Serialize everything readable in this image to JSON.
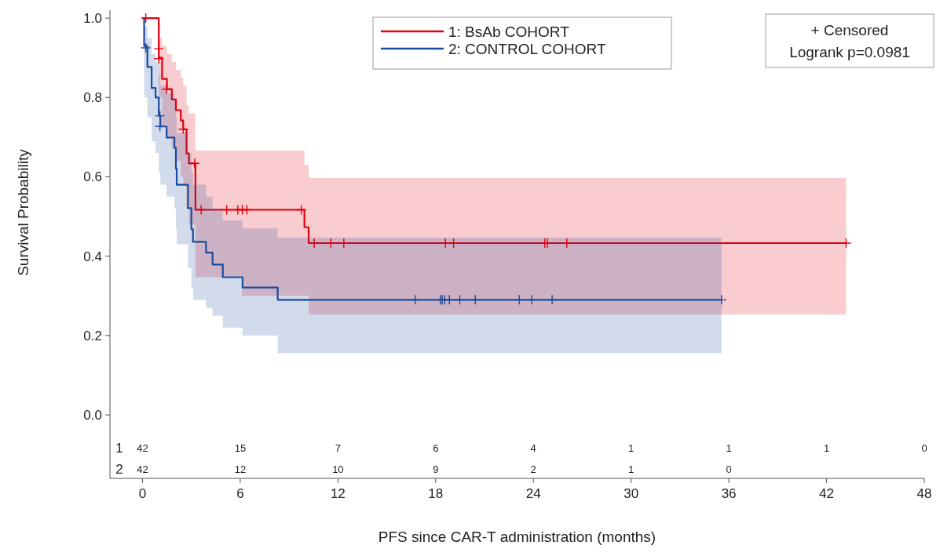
{
  "chart_data": {
    "type": "step",
    "xlabel": "PFS since CAR-T administration (months)",
    "ylabel": "Survival Probability",
    "xlim": [
      -2,
      48
    ],
    "xticks": [
      0,
      6,
      12,
      18,
      24,
      30,
      36,
      42,
      48
    ],
    "ylim": [
      -0.16,
      1.02
    ],
    "yticks": [
      {
        "value": 0,
        "label": "0.0"
      },
      {
        "value": 0.2,
        "label": "0.2"
      },
      {
        "value": 0.4,
        "label": "0.4"
      },
      {
        "value": 0.6,
        "label": "0.6"
      },
      {
        "value": 0.8,
        "label": "0.8"
      },
      {
        "value": 1,
        "label": "1.0"
      }
    ],
    "legend": "top",
    "grid": false,
    "line_style": "solid",
    "series": [
      {
        "name": "1: BsAb COHORT",
        "color": "#e3000f",
        "x": [
          0,
          1.0,
          1.2,
          1.5,
          1.8,
          2.05,
          2.35,
          2.5,
          2.7,
          2.85,
          3.25,
          6.1,
          9.94,
          10.2,
          43.2
        ],
        "values": [
          1.0,
          0.9,
          0.847,
          0.821,
          0.795,
          0.768,
          0.742,
          0.72,
          0.659,
          0.634,
          0.517,
          0.517,
          0.473,
          0.433,
          0.433
        ],
        "lower": [
          1.0,
          0.8,
          0.73,
          0.7,
          0.67,
          0.64,
          0.6,
          0.58,
          0.52,
          0.48,
          0.347,
          0.3,
          0.3,
          0.253,
          0.253
        ],
        "upper": [
          1.0,
          0.95,
          0.93,
          0.91,
          0.89,
          0.87,
          0.85,
          0.83,
          0.78,
          0.76,
          0.666,
          0.666,
          0.63,
          0.597,
          0.597
        ]
      },
      {
        "name": "2: CONTROL COHORT",
        "color": "#1a4b9c",
        "x": [
          0,
          0.1,
          0.3,
          0.56,
          0.8,
          1.0,
          1.1,
          1.48,
          1.96,
          2.05,
          2.1,
          2.79,
          3.0,
          3.1,
          3.9,
          4.3,
          4.93,
          6.14,
          8.3,
          35.55
        ],
        "values": [
          1.0,
          0.93,
          0.877,
          0.824,
          0.8,
          0.754,
          0.727,
          0.699,
          0.673,
          0.62,
          0.58,
          0.521,
          0.468,
          0.436,
          0.409,
          0.379,
          0.347,
          0.321,
          0.29,
          0.29
        ],
        "lower": [
          1.0,
          0.8,
          0.75,
          0.69,
          0.66,
          0.61,
          0.58,
          0.55,
          0.52,
          0.47,
          0.43,
          0.37,
          0.32,
          0.29,
          0.27,
          0.25,
          0.22,
          0.2,
          0.156,
          0.156
        ],
        "upper": [
          1.0,
          0.98,
          0.95,
          0.91,
          0.89,
          0.86,
          0.83,
          0.81,
          0.79,
          0.75,
          0.71,
          0.66,
          0.61,
          0.58,
          0.55,
          0.52,
          0.49,
          0.47,
          0.447,
          0.447
        ]
      },
      {
        "type": "scatter",
        "marker": "cross",
        "color": "#e3000f",
        "x": [
          0.2,
          1.0,
          1.0,
          1.48,
          2.5,
          3.2,
          3.6,
          5.17,
          5.85,
          6.13,
          6.41,
          9.75,
          10.54,
          11.56,
          12.36,
          18.6,
          19.1,
          24.7,
          24.86,
          26.05,
          43.2
        ],
        "values": [
          1.0,
          0.923,
          0.898,
          0.821,
          0.72,
          0.634,
          0.517,
          0.517,
          0.517,
          0.517,
          0.517,
          0.517,
          0.433,
          0.433,
          0.433,
          0.433,
          0.433,
          0.433,
          0.433,
          0.433,
          0.433
        ]
      },
      {
        "type": "scatter",
        "marker": "cross",
        "color": "#1a4b9c",
        "x": [
          0.2,
          1.07,
          1.07,
          16.74,
          18.29,
          18.4,
          18.55,
          18.84,
          19.48,
          20.43,
          23.13,
          23.9,
          25.15,
          35.55
        ],
        "values": [
          0.925,
          0.754,
          0.727,
          0.29,
          0.29,
          0.29,
          0.29,
          0.29,
          0.29,
          0.29,
          0.29,
          0.29,
          0.29,
          0.29
        ]
      }
    ],
    "annotations": [
      "+ Censored",
      "Logrank p=0.0981",
      "1",
      "42",
      "15",
      "7",
      "6",
      "4",
      "1",
      "1",
      "1",
      "0",
      "2",
      "42",
      "12",
      "10",
      "9",
      "2",
      "1",
      "0"
    ]
  }
}
